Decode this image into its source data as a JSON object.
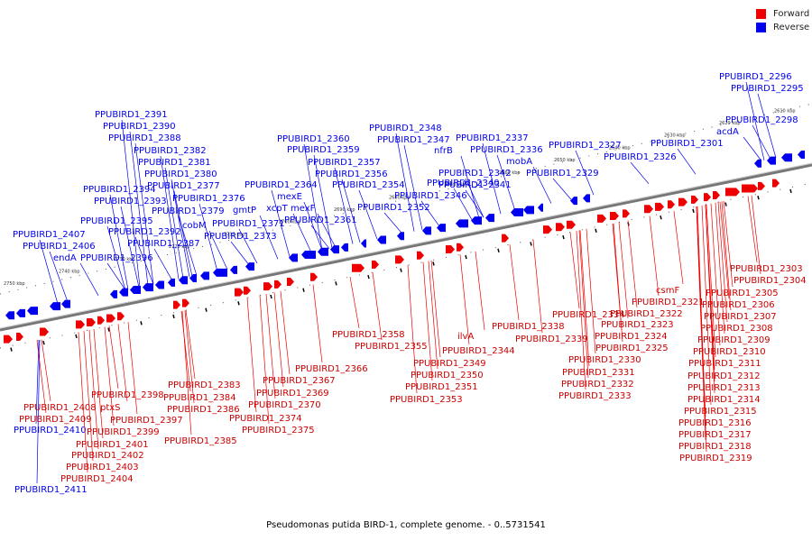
{
  "caption": "Pseudomonas putida BIRD-1, complete genome. - 0..5731541",
  "legend": [
    {
      "label": "Forward",
      "color": "#ee0000"
    },
    {
      "label": "Reverse",
      "color": "#0000ee"
    }
  ],
  "colors": {
    "forward": "#ee0000",
    "reverse": "#0000ee",
    "axis": "#777777"
  },
  "scale_ticks": [
    "2750 kbp",
    "2740 kbp",
    "2730 kbp",
    "2720 kbp",
    "2710 kbp",
    "2700 kbp",
    "2690 kbp",
    "2680 kbp",
    "2670 kbp",
    "2660 kbp",
    "2650 kbp",
    "2640 kbp",
    "2630 kbp",
    "2620 kbp",
    "2610 kbp"
  ],
  "reverse_labels": [
    "PPUBIRD1_2296",
    "PPUBIRD1_2295",
    "PPUBIRD1_2298",
    "acdA",
    "PPUBIRD1_2301",
    "PPUBIRD1_2327",
    "PPUBIRD1_2326",
    "PPUBIRD1_2329",
    "PPUBIRD1_2337",
    "PPUBIRD1_2336",
    "mobA",
    "PPUBIRD1_2342",
    "PPUBIRD1_2341",
    "PPUBIRD1_2340",
    "PPUBIRD1_2348",
    "PPUBIRD1_2347",
    "nfrB",
    "PPUBIRD1_2346",
    "PPUBIRD1_2352",
    "PPUBIRD1_2360",
    "PPUBIRD1_2359",
    "PPUBIRD1_2357",
    "PPUBIRD1_2356",
    "PPUBIRD1_2354",
    "PPUBIRD1_2364",
    "mexE",
    "xcpT",
    "mexF",
    "PPUBIRD1_2361",
    "PPUBIRD1_2391",
    "PPUBIRD1_2390",
    "PPUBIRD1_2388",
    "PPUBIRD1_2382",
    "PPUBIRD1_2381",
    "PPUBIRD1_2380",
    "PPUBIRD1_2377",
    "PPUBIRD1_2376",
    "PPUBIRD1_2379",
    "cobM",
    "PPUBIRD1_2394",
    "PPUBIRD1_2393",
    "gmtP",
    "PPUBIRD1_2371",
    "PPUBIRD1_2373",
    "PPUBIRD1_2395",
    "PPUBIRD1_2392",
    "PPUBIRD1_2387",
    "PPUBIRD1_2407",
    "PPUBIRD1_2406",
    "endA",
    "PPUBIRD1_2396",
    "PPUBIRD1_2410",
    "PPUBIRD1_2411"
  ],
  "forward_labels": [
    "PPUBIRD1_2303",
    "PPUBIRD1_2304",
    "PPUBIRD1_2305",
    "PPUBIRD1_2306",
    "PPUBIRD1_2307",
    "PPUBIRD1_2308",
    "PPUBIRD1_2309",
    "PPUBIRD1_2310",
    "PPUBIRD1_2311",
    "PPUBIRD1_2312",
    "PPUBIRD1_2313",
    "PPUBIRD1_2314",
    "PPUBIRD1_2315",
    "PPUBIRD1_2316",
    "PPUBIRD1_2317",
    "PPUBIRD1_2318",
    "PPUBIRD1_2319",
    "csmF",
    "PPUBIRD1_2321",
    "PPUBIRD1_2322",
    "PPUBIRD1_2323",
    "PPUBIRD1_2324",
    "PPUBIRD1_2325",
    "PPUBIRD1_2334",
    "PPUBIRD1_2338",
    "PPUBIRD1_2339",
    "PPUBIRD1_2330",
    "PPUBIRD1_2331",
    "PPUBIRD1_2332",
    "PPUBIRD1_2333",
    "ilvA",
    "PPUBIRD1_2344",
    "PPUBIRD1_2349",
    "PPUBIRD1_2350",
    "PPUBIRD1_2351",
    "PPUBIRD1_2353",
    "PPUBIRD1_2358",
    "PPUBIRD1_2355",
    "PPUBIRD1_2366",
    "PPUBIRD1_2367",
    "PPUBIRD1_2369",
    "PPUBIRD1_2370",
    "PPUBIRD1_2374",
    "PPUBIRD1_2375",
    "PPUBIRD1_2383",
    "PPUBIRD1_2384",
    "PPUBIRD1_2386",
    "PPUBIRD1_2385",
    "PPUBIRD1_2398",
    "ptxS",
    "PPUBIRD1_2397",
    "PPUBIRD1_2399",
    "PPUBIRD1_2401",
    "PPUBIRD1_2402",
    "PPUBIRD1_2403",
    "PPUBIRD1_2404",
    "PPUBIRD1_2408",
    "PPUBIRD1_2409"
  ]
}
